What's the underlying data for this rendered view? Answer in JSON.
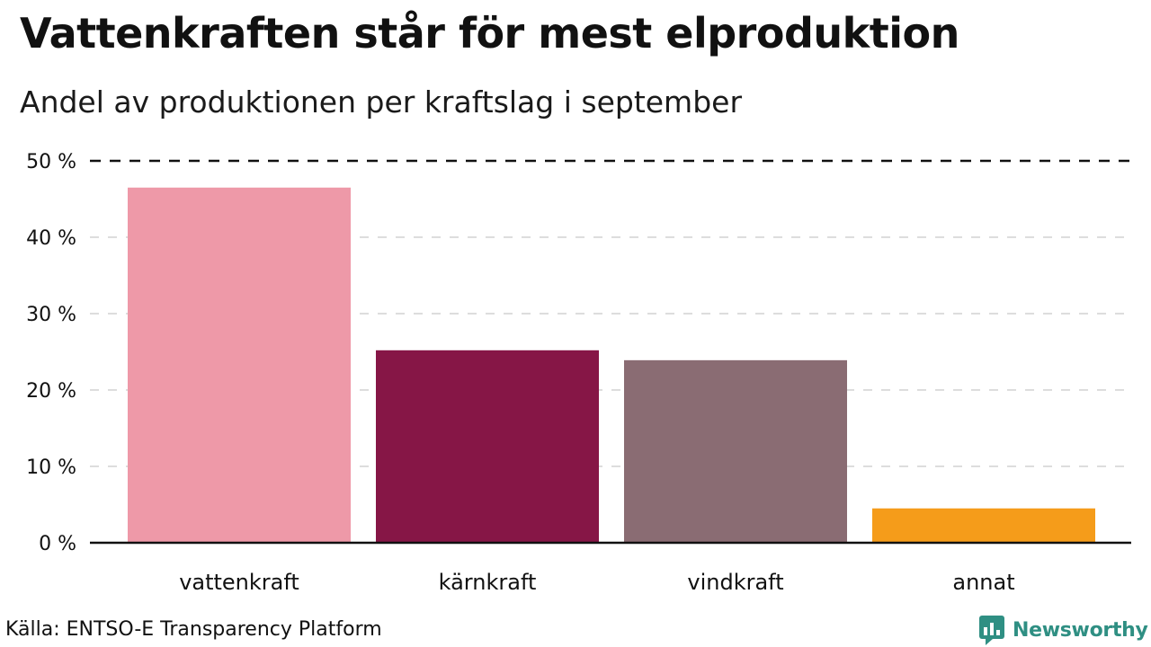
{
  "colors": {
    "bars": [
      "#ee99a8",
      "#861646",
      "#8a6c73",
      "#f59c1a"
    ],
    "grid": "#dddddd",
    "axis": "#111111",
    "brand": "#2f8f83"
  },
  "chart_data": {
    "type": "bar",
    "title": "Vattenkraften står för mest elproduktion",
    "subtitle": "Andel av produktionen per kraftslag i september",
    "categories": [
      "vattenkraft",
      "kärnkraft",
      "vindkraft",
      "annat"
    ],
    "values": [
      46.5,
      25.2,
      23.9,
      4.5
    ],
    "unit": "%",
    "xlabel": "",
    "ylabel": "",
    "ylim": [
      0,
      50
    ],
    "yticks": [
      0,
      10,
      20,
      30,
      40,
      50
    ],
    "ytick_labels": [
      "0 %",
      "10 %",
      "20 %",
      "30 %",
      "40 %",
      "50 %"
    ],
    "grid": true,
    "reference_line": 50
  },
  "footer": {
    "source": "Källa: ENTSO-E Transparency Platform",
    "brand_name": "Newsworthy",
    "brand_icon": "newsworthy-logo-icon"
  }
}
